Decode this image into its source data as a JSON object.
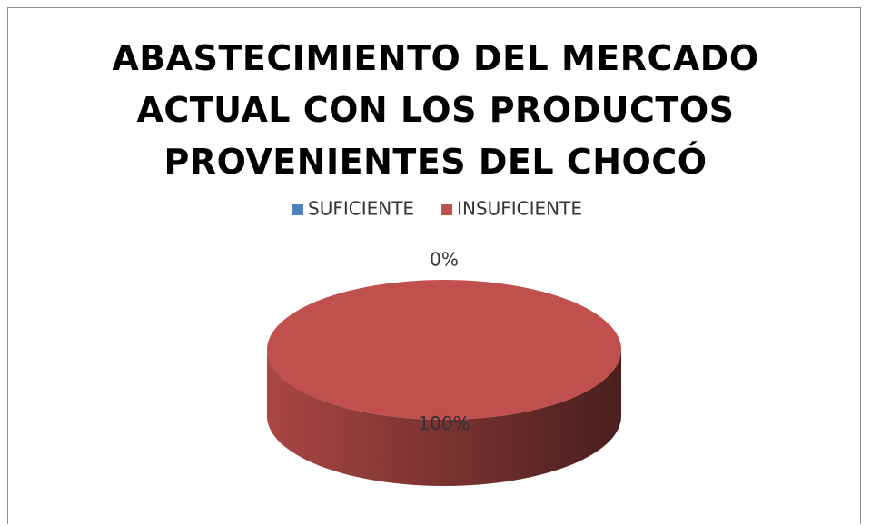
{
  "chart_data": {
    "type": "pie3d",
    "title": "ABASTECIMIENTO DEL MERCADO ACTUAL CON LOS PRODUCTOS PROVENIENTES DEL CHOCÓ",
    "categories": [
      "SUFICIENTE",
      "INSUFICIENTE"
    ],
    "values": [
      0,
      100
    ],
    "value_labels": [
      "0%",
      "100%"
    ],
    "colors": [
      "#4f81bd",
      "#c0504d"
    ],
    "legend": "top"
  }
}
